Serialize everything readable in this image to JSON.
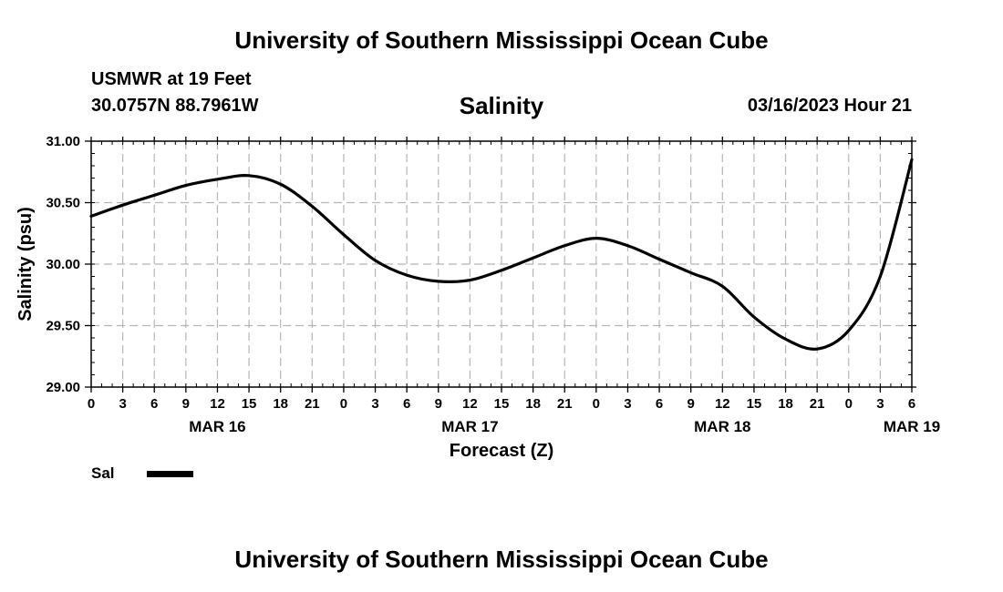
{
  "header": {
    "title": "University of Southern Mississippi Ocean Cube",
    "station": "USMWR at 19 Feet",
    "coordinates": "30.0757N  88.7961W",
    "variable": "Salinity",
    "datetime": "03/16/2023 Hour 21"
  },
  "footer": {
    "title": "University of Southern Mississippi Ocean Cube"
  },
  "legend": {
    "label": "Sal",
    "color": "#000000"
  },
  "chart_data": {
    "type": "line",
    "title": "Salinity",
    "xlabel": "Forecast (Z)",
    "ylabel": "Salinity (psu)",
    "ylim": [
      29.0,
      31.0
    ],
    "yticks": [
      "29.00",
      "29.50",
      "30.00",
      "30.50",
      "31.00"
    ],
    "x_hours_range": [
      0,
      78
    ],
    "xtick_labels": [
      "0",
      "3",
      "6",
      "9",
      "12",
      "15",
      "18",
      "21",
      "0",
      "3",
      "6",
      "9",
      "12",
      "15",
      "18",
      "21",
      "0",
      "3",
      "6",
      "9",
      "12",
      "15",
      "18",
      "21",
      "0",
      "3",
      "6"
    ],
    "date_labels": [
      {
        "label": "MAR 16",
        "hour": 12
      },
      {
        "label": "MAR 17",
        "hour": 36
      },
      {
        "label": "MAR 18",
        "hour": 60
      },
      {
        "label": "MAR 19",
        "hour": 78
      }
    ],
    "grid": true,
    "series": [
      {
        "name": "Sal",
        "x_hours": [
          0,
          3,
          6,
          9,
          12,
          15,
          18,
          21,
          24,
          27,
          30,
          33,
          36,
          39,
          42,
          45,
          48,
          51,
          54,
          57,
          60,
          63,
          66,
          69,
          72,
          75,
          78
        ],
        "values": [
          30.39,
          30.48,
          30.56,
          30.64,
          30.69,
          30.72,
          30.65,
          30.47,
          30.24,
          30.03,
          29.91,
          29.86,
          29.87,
          29.95,
          30.05,
          30.15,
          30.21,
          30.15,
          30.04,
          29.93,
          29.82,
          29.57,
          29.39,
          29.31,
          29.46,
          29.9,
          30.85
        ]
      }
    ]
  }
}
